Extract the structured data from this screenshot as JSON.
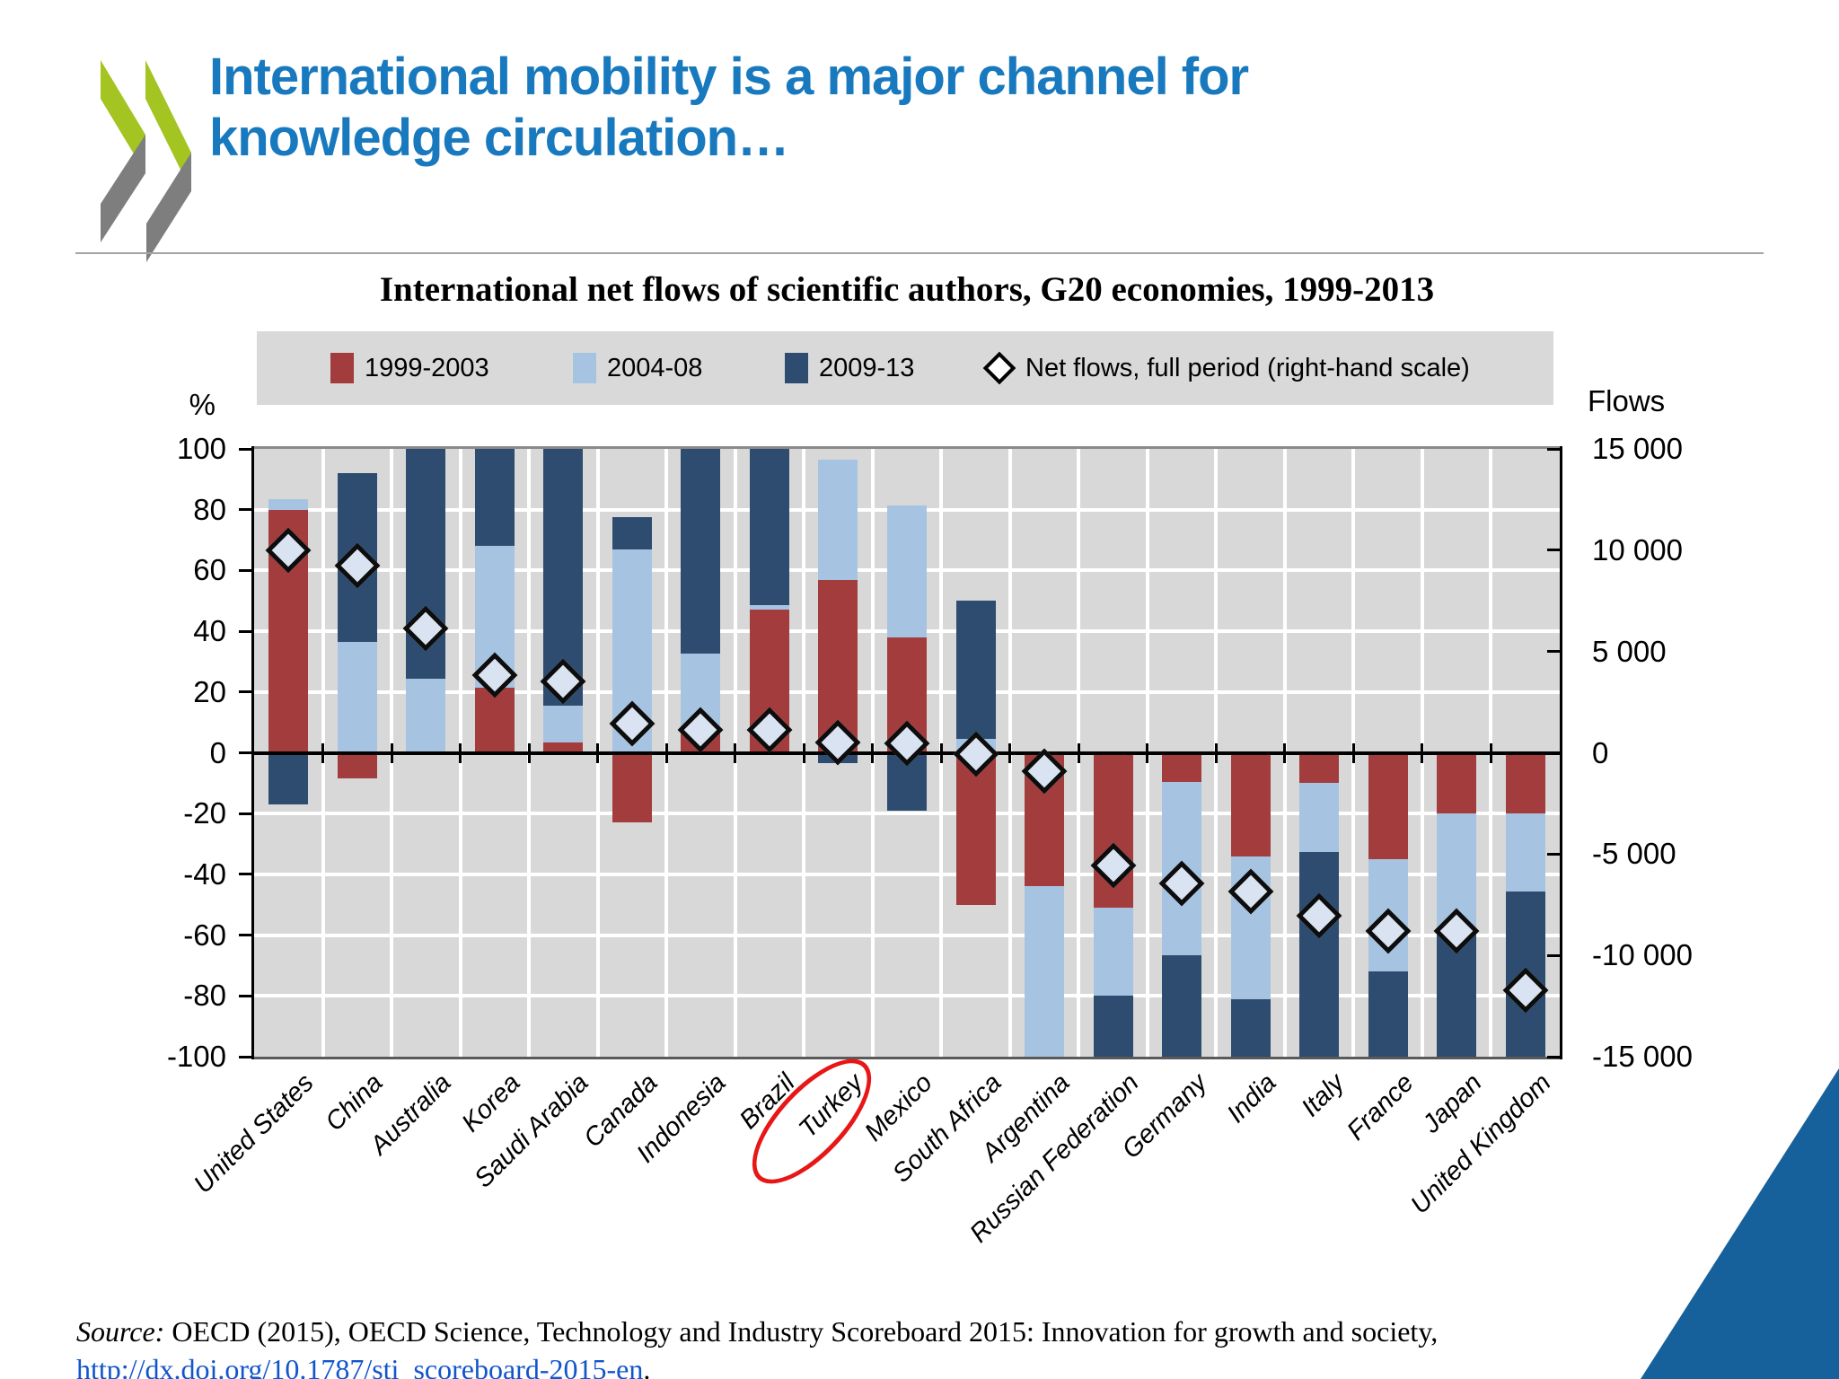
{
  "slide": {
    "title_line1": "International mobility is a major channel for",
    "title_line2": "knowledge circulation…",
    "title_color": "#1879be",
    "source": {
      "prefix": "Source:",
      "body": " OECD (2015), OECD Science, Technology and Industry Scoreboard 2015: Innovation for growth and society, ",
      "link": "http://dx.doi.org/10.1787/sti_scoreboard-2015-en",
      "suffix": "."
    }
  },
  "logo": {
    "green": "#a4c421",
    "gray": "#7e7e7e"
  },
  "footer_triangle_color": "#16619b",
  "chart_data": {
    "type": "bar",
    "title": "International net flows of scientific authors, G20 economies, 1999-2013",
    "left_axis": {
      "label": "%",
      "min": -100,
      "max": 100,
      "tick_step": 20,
      "ticks": [
        100,
        80,
        60,
        40,
        20,
        0,
        -20,
        -40,
        -60,
        -80,
        -100
      ]
    },
    "right_axis": {
      "label": "Flows",
      "min": -15000,
      "max": 15000,
      "ticks": [
        "15 000",
        "10 000",
        "5 000",
        "0",
        "-5 000",
        "-10 000",
        "-15 000"
      ]
    },
    "grid": true,
    "legend_position": "top",
    "legend": [
      {
        "label": "1999-2003",
        "marker": "square",
        "color": "#a33c3c"
      },
      {
        "label": "2004-08",
        "marker": "square",
        "color": "#a6c4e2"
      },
      {
        "label": "2009-13",
        "marker": "square",
        "color": "#2d4c6f"
      },
      {
        "label": "Net flows, full period (right-hand scale)",
        "marker": "diamond",
        "color": "#ffffff"
      }
    ],
    "categories": [
      "United States",
      "China",
      "Australia",
      "Korea",
      "Saudi Arabia",
      "Canada",
      "Indonesia",
      "Brazil",
      "Turkey",
      "Mexico",
      "South Africa",
      "Argentina",
      "Russian Federation",
      "Germany",
      "India",
      "Italy",
      "France",
      "Japan",
      "United Kingdom"
    ],
    "series": [
      {
        "name": "1999-2003",
        "color": "#a33c3c",
        "segments_pct": [
          [
            0,
            80
          ],
          [
            -8.5,
            0
          ],
          null,
          [
            0,
            21.5
          ],
          [
            0,
            3.5
          ],
          [
            -23,
            0
          ],
          [
            0,
            6.5
          ],
          [
            0,
            47
          ],
          [
            0,
            57
          ],
          [
            0,
            38
          ],
          [
            -50,
            0
          ],
          [
            -44,
            0
          ],
          [
            -51,
            0
          ],
          [
            -9.5,
            0
          ],
          [
            -34,
            0
          ],
          [
            -10,
            0
          ],
          [
            -35,
            0
          ],
          [
            -20,
            0
          ],
          [
            -20,
            0
          ]
        ]
      },
      {
        "name": "2004-08",
        "color": "#a6c4e2",
        "segments_pct": [
          [
            80,
            83.5
          ],
          [
            0,
            36.5
          ],
          [
            0,
            24.5
          ],
          [
            21.5,
            68
          ],
          [
            3.5,
            15.5
          ],
          [
            0,
            67
          ],
          [
            6.5,
            32.5
          ],
          [
            47,
            48.5
          ],
          [
            57,
            96.5
          ],
          [
            38,
            81.5
          ],
          [
            0,
            4.5
          ],
          [
            -100,
            -44
          ],
          [
            -80,
            -51
          ],
          [
            -66.5,
            -9.5
          ],
          [
            -81,
            -34
          ],
          [
            -32.5,
            -10
          ],
          [
            -72,
            -35
          ],
          [
            -59,
            -20
          ],
          [
            -45.5,
            -20
          ]
        ]
      },
      {
        "name": "2009-13",
        "color": "#2d4c6f",
        "segments_pct": [
          [
            -17,
            0
          ],
          [
            36.5,
            92
          ],
          [
            24.5,
            100
          ],
          [
            68,
            100
          ],
          [
            15.5,
            100
          ],
          [
            67,
            77.5
          ],
          [
            32.5,
            100
          ],
          [
            48.5,
            100
          ],
          [
            -3.5,
            0
          ],
          [
            -19,
            0
          ],
          [
            4.5,
            50
          ],
          null,
          [
            -100,
            -80
          ],
          [
            -100,
            -66.5
          ],
          [
            -100,
            -81
          ],
          [
            -100,
            -32.5
          ],
          [
            -100,
            -72
          ],
          [
            -100,
            -59
          ],
          [
            -100,
            -45.5
          ]
        ]
      }
    ],
    "net_flows": {
      "name": "Net flows, full period (right-hand scale)",
      "pct_scale": [
        66.5,
        61.5,
        41,
        25.5,
        23.5,
        9.5,
        7.5,
        7.5,
        3.5,
        3,
        -0.5,
        -6,
        -37,
        -43,
        -45.5,
        -53.5,
        -58.5,
        -58.5,
        -78
      ],
      "flows_scale": [
        10000,
        9200,
        6150,
        3850,
        3550,
        1450,
        1150,
        1150,
        550,
        450,
        -100,
        -900,
        -5550,
        -6450,
        -6850,
        -8000,
        -8800,
        -8800,
        -11700
      ]
    },
    "annotation": {
      "circled_category": "Turkey",
      "circle_color": "#e81717"
    },
    "colors": {
      "plot_bg": "#d8d8d8",
      "legend_bg": "#d9d9d9",
      "gridline": "#ffffff",
      "axis": "#000000",
      "frame_top": "#8a8a8a",
      "frame_bottom": "#5a5a5a",
      "diamond_fill": "#d9e3f1"
    }
  }
}
